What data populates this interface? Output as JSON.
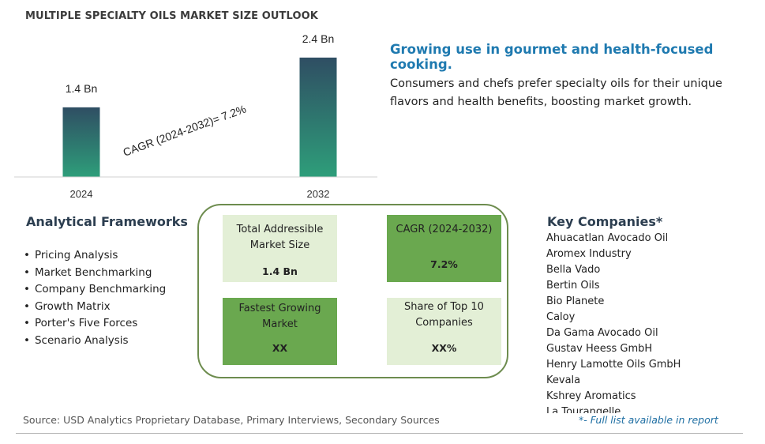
{
  "title": "MULTIPLE SPECIALTY OILS MARKET SIZE OUTLOOK",
  "chart_data": {
    "type": "bar",
    "categories": [
      "2024",
      "2032"
    ],
    "values": [
      1.4,
      2.4
    ],
    "value_labels": [
      "1.4 Bn",
      "2.4 Bn"
    ],
    "annotation": "CAGR (2024-2032)=  7.2%",
    "ylim": [
      0,
      2.7
    ],
    "grid": false,
    "bar_gradient": [
      "#2f4e63",
      "#2e9e7a"
    ]
  },
  "headline": "Growing use in gourmet and health-focused cooking.",
  "description": "Consumers and chefs prefer specialty oils for their unique flavors and health benefits, boosting market growth.",
  "frameworks": {
    "title": "Analytical Frameworks",
    "items": [
      "Pricing Analysis",
      "Market Benchmarking",
      "Company Benchmarking",
      "Growth Matrix",
      "Porter's Five Forces",
      "Scenario Analysis"
    ]
  },
  "tiles": {
    "tam": {
      "label": "Total Addressible Market Size",
      "value": "1.4 Bn"
    },
    "cagr": {
      "label": "CAGR (2024-2032)",
      "value": "7.2%"
    },
    "fastest": {
      "label": "Fastest Growing Market",
      "value": "XX"
    },
    "share": {
      "label": "Share of Top 10 Companies",
      "value": "XX%"
    }
  },
  "companies": {
    "title": "Key Companies*",
    "items": [
      "Ahuacatlan Avocado Oil",
      "Aromex Industry",
      "Bella Vado",
      "Bertin Oils",
      "Bio Planete",
      "Caloy",
      "Da Gama Avocado Oil",
      "Gustav Heess GmbH",
      "Henry Lamotte Oils GmbH",
      "Kevala",
      "Kshrey Aromatics",
      "La Tourangelle"
    ]
  },
  "source": "Source: USD Analytics Proprietary Database, Primary Interviews, Secondary Sources",
  "note": "*- Full list available in report"
}
